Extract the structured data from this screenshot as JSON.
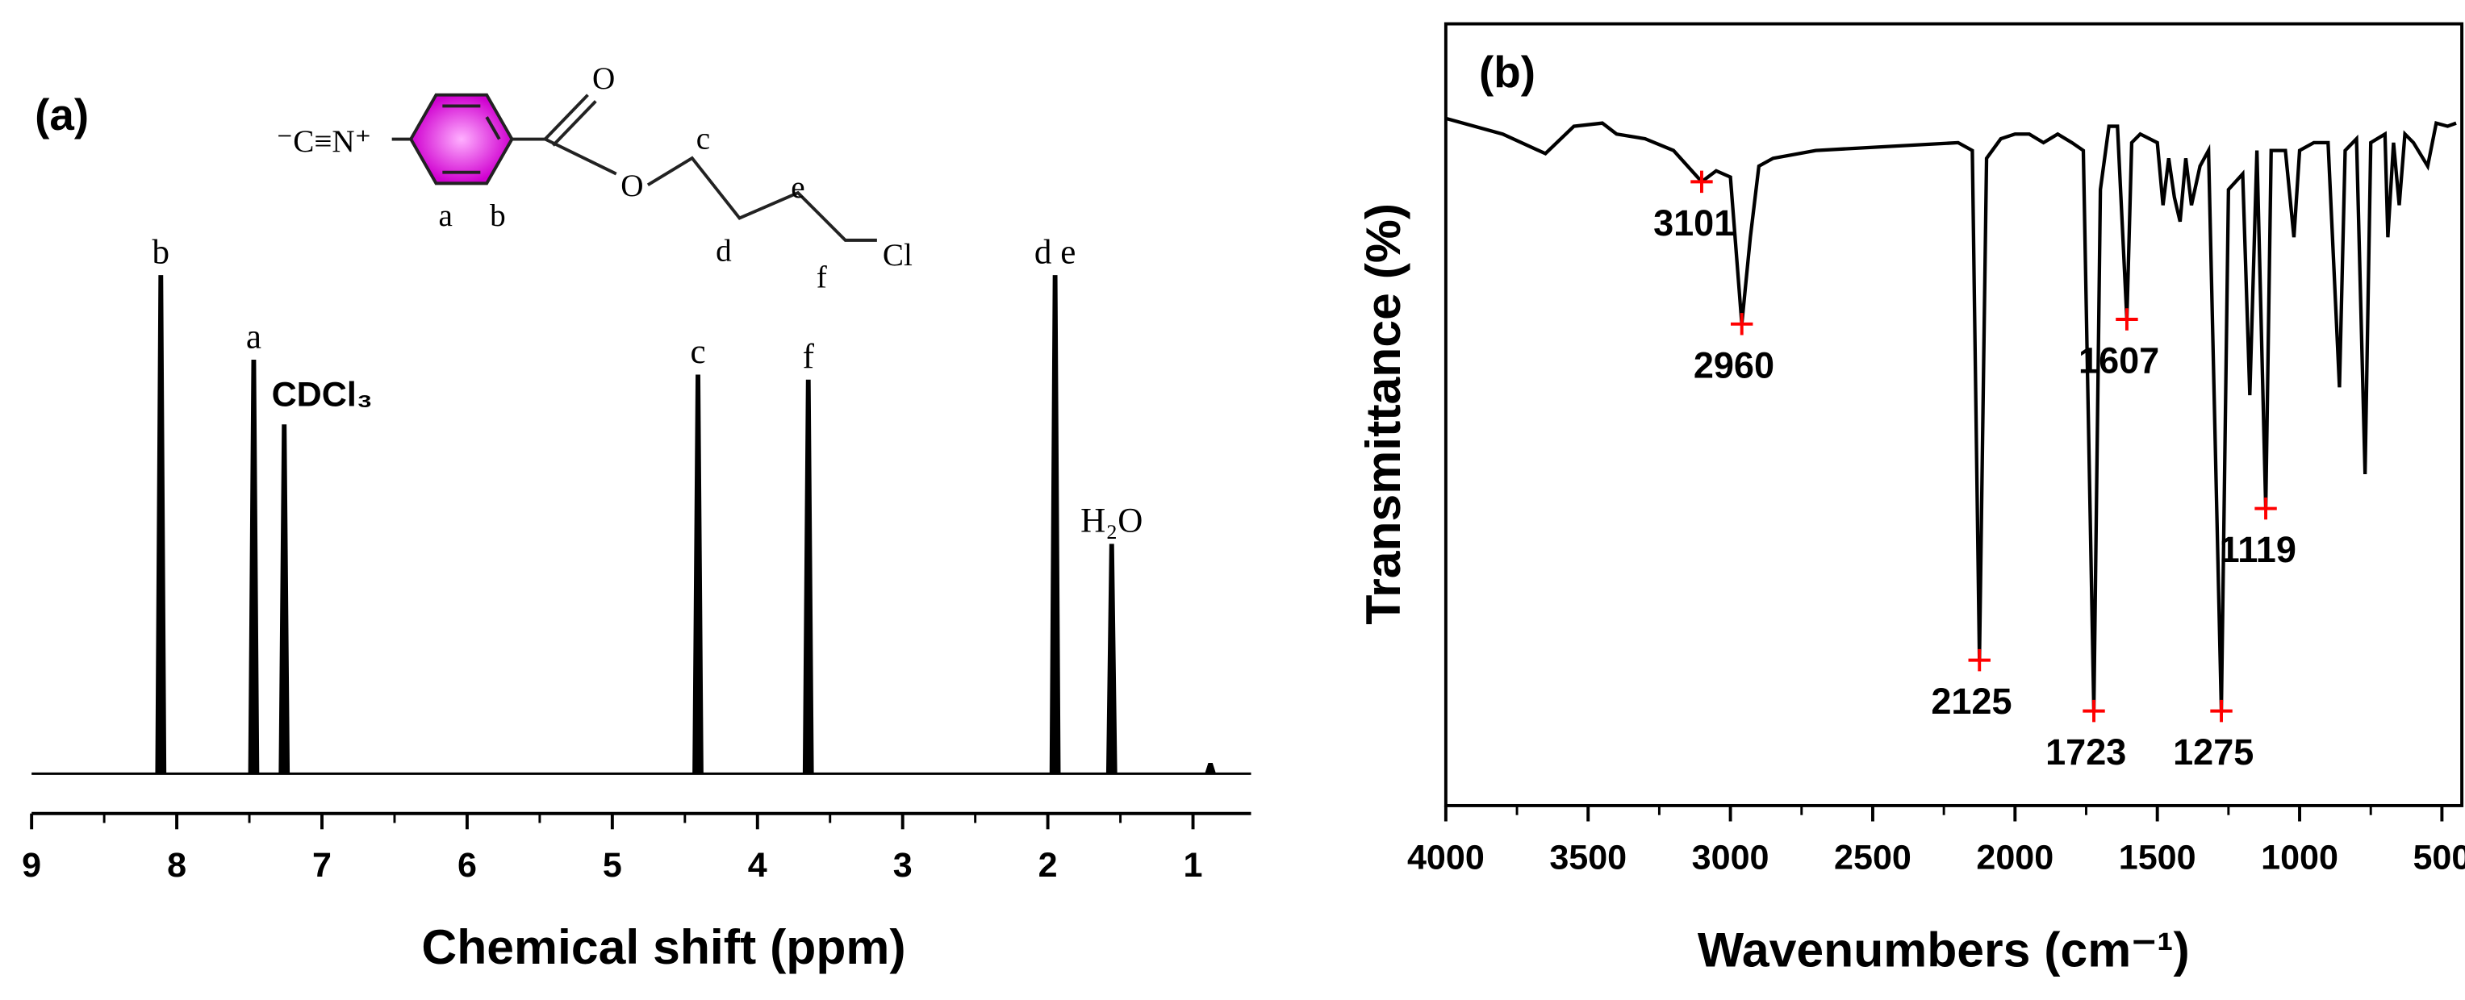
{
  "chart_data": [
    {
      "type": "spectrum",
      "panel_label": "(a)",
      "x_label": "Chemical shift (ppm)",
      "xlim": [
        9,
        0.6
      ],
      "xticks": [
        9,
        8,
        7,
        6,
        5,
        4,
        3,
        2,
        1
      ],
      "xminor_ticks": [
        8.5,
        7.5,
        6.5,
        5.5,
        4.5,
        3.5,
        2.5,
        1.5
      ],
      "ylim": [
        -8,
        130
      ],
      "x": [
        8.11,
        7.47,
        7.26,
        4.41,
        3.65,
        1.95,
        1.56,
        0.88
      ],
      "values": [
        100,
        83,
        70,
        80,
        79,
        100,
        46,
        2
      ],
      "labels": [
        "b",
        "a",
        "CDCl₃",
        "c",
        "f",
        "d e",
        "H₂O",
        null
      ],
      "color": "#000000",
      "structure_labels": [
        "⁻C≡N⁺",
        "a",
        "b",
        "O",
        "O",
        "c",
        "d",
        "e",
        "f",
        "Cl"
      ]
    },
    {
      "type": "line",
      "panel_label": "(b)",
      "x_label": "Wavenumbers (cm⁻¹)",
      "y_label": "Transmittance (%)",
      "xlim": [
        4000,
        430
      ],
      "xticks": [
        4000,
        3500,
        3000,
        2500,
        2000,
        1500,
        1000,
        500
      ],
      "xminor_ticks": [
        3750,
        3250,
        2750,
        2250,
        1750,
        1250,
        750
      ],
      "ylim": [
        0,
        100
      ],
      "x": [
        4000,
        3800,
        3650,
        3550,
        3450,
        3400,
        3300,
        3200,
        3101,
        3050,
        3000,
        2960,
        2930,
        2900,
        2850,
        2700,
        2400,
        2200,
        2150,
        2125,
        2100,
        2050,
        2000,
        1950,
        1900,
        1850,
        1800,
        1760,
        1723,
        1700,
        1670,
        1640,
        1607,
        1590,
        1560,
        1500,
        1480,
        1460,
        1440,
        1420,
        1400,
        1380,
        1350,
        1320,
        1275,
        1250,
        1200,
        1175,
        1150,
        1119,
        1100,
        1050,
        1020,
        1000,
        950,
        900,
        860,
        840,
        800,
        770,
        750,
        700,
        690,
        670,
        650,
        630,
        600,
        550,
        520,
        480,
        450
      ],
      "values": [
        87.9,
        85.9,
        83.4,
        86.9,
        87.3,
        85.9,
        85.3,
        83.8,
        79.8,
        81.2,
        80.4,
        61.6,
        72.7,
        81.8,
        82.8,
        83.8,
        84.4,
        84.8,
        83.8,
        18.6,
        82.8,
        85.3,
        85.9,
        85.9,
        84.8,
        85.9,
        84.8,
        83.8,
        12.1,
        78.8,
        86.9,
        86.9,
        62.2,
        84.8,
        85.9,
        84.8,
        76.8,
        82.8,
        77.8,
        74.7,
        82.8,
        76.8,
        81.8,
        83.8,
        12.1,
        78.8,
        80.8,
        52.5,
        83.8,
        38.0,
        83.8,
        83.8,
        72.7,
        83.8,
        84.8,
        84.8,
        53.5,
        83.8,
        85.3,
        42.4,
        84.8,
        85.9,
        72.7,
        84.8,
        76.8,
        85.9,
        84.8,
        81.8,
        87.3,
        86.9,
        87.3
      ],
      "color": "#000000",
      "markers": {
        "color": "#ff0000",
        "x": [
          3101,
          2960,
          2125,
          1723,
          1607,
          1275,
          1119
        ],
        "values": [
          79.8,
          61.6,
          18.6,
          12.1,
          62.2,
          12.1,
          38.0
        ]
      }
    }
  ]
}
